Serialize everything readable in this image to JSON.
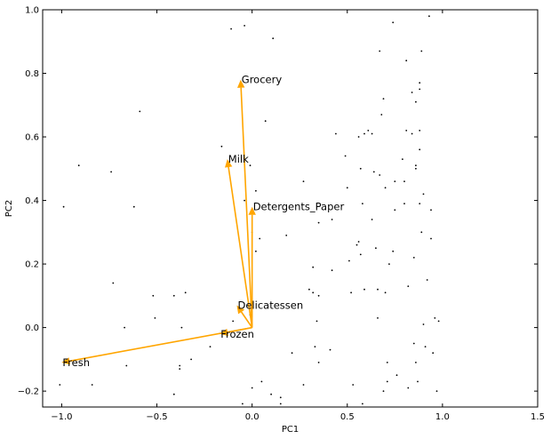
{
  "chart_data": {
    "type": "scatter",
    "title": "",
    "xlabel": "PC1",
    "ylabel": "PC2",
    "xlim": [
      -1.1,
      1.5
    ],
    "ylim": [
      -0.25,
      1.0
    ],
    "grid": false,
    "xticks": [
      -1.0,
      -0.5,
      0.0,
      0.5,
      1.0,
      1.5
    ],
    "xtick_labels": [
      "−1.0",
      "−0.5",
      "0.0",
      "0.5",
      "1.0",
      "1.5"
    ],
    "yticks": [
      -0.2,
      0.0,
      0.2,
      0.4,
      0.6,
      0.8,
      1.0
    ],
    "ytick_labels": [
      "−0.2",
      "0.0",
      "0.2",
      "0.4",
      "0.6",
      "0.8",
      "1.0"
    ],
    "arrow_color": "#FFA500",
    "point_color": "#000000",
    "arrows": [
      {
        "label": "Grocery",
        "x": -0.06,
        "y": 0.78
      },
      {
        "label": "Milk",
        "x": -0.13,
        "y": 0.53
      },
      {
        "label": "Detergents_Paper",
        "x": 0.0,
        "y": 0.38
      },
      {
        "label": "Delicatessen",
        "x": -0.08,
        "y": 0.07
      },
      {
        "label": "Frozen",
        "x": -0.17,
        "y": -0.02
      },
      {
        "label": "Fresh",
        "x": -1.0,
        "y": -0.11
      }
    ],
    "points": [
      [
        -0.04,
        0.95
      ],
      [
        -0.11,
        0.94
      ],
      [
        0.11,
        0.91
      ],
      [
        0.07,
        0.65
      ],
      [
        -0.59,
        0.68
      ],
      [
        -0.16,
        0.57
      ],
      [
        -0.13,
        0.51
      ],
      [
        -0.91,
        0.51
      ],
      [
        -0.74,
        0.49
      ],
      [
        -0.01,
        0.51
      ],
      [
        -0.99,
        0.38
      ],
      [
        -0.62,
        0.38
      ],
      [
        -0.04,
        0.4
      ],
      [
        0.02,
        0.43
      ],
      [
        0.0,
        0.3
      ],
      [
        0.04,
        0.28
      ],
      [
        0.18,
        0.29
      ],
      [
        0.02,
        0.24
      ],
      [
        -0.73,
        0.14
      ],
      [
        -0.52,
        0.1
      ],
      [
        -0.41,
        0.1
      ],
      [
        -0.35,
        0.11
      ],
      [
        -0.02,
        0.07
      ],
      [
        -0.01,
        0.04
      ],
      [
        -0.51,
        0.03
      ],
      [
        -0.67,
        0.0
      ],
      [
        -0.37,
        0.0
      ],
      [
        -0.1,
        0.02
      ],
      [
        -0.22,
        -0.06
      ],
      [
        -0.32,
        -0.1
      ],
      [
        -0.38,
        -0.13
      ],
      [
        -0.38,
        -0.12
      ],
      [
        -0.66,
        -0.12
      ],
      [
        -0.84,
        -0.18
      ],
      [
        -1.01,
        -0.18
      ],
      [
        -0.41,
        -0.21
      ],
      [
        -0.05,
        -0.24
      ],
      [
        0.0,
        -0.19
      ],
      [
        0.05,
        -0.17
      ],
      [
        0.1,
        -0.21
      ],
      [
        0.15,
        -0.22
      ],
      [
        0.15,
        -0.24
      ],
      [
        0.21,
        -0.08
      ],
      [
        0.27,
        -0.18
      ],
      [
        0.27,
        0.46
      ],
      [
        0.35,
        0.33
      ],
      [
        0.32,
        0.19
      ],
      [
        0.3,
        0.12
      ],
      [
        0.32,
        0.11
      ],
      [
        0.35,
        0.1
      ],
      [
        0.34,
        0.02
      ],
      [
        0.33,
        -0.06
      ],
      [
        0.35,
        -0.11
      ],
      [
        0.41,
        -0.07
      ],
      [
        0.42,
        0.18
      ],
      [
        0.42,
        0.34
      ],
      [
        0.44,
        0.61
      ],
      [
        0.49,
        0.54
      ],
      [
        0.5,
        0.44
      ],
      [
        0.51,
        0.21
      ],
      [
        0.52,
        0.11
      ],
      [
        0.53,
        -0.18
      ],
      [
        0.55,
        0.26
      ],
      [
        0.56,
        0.27
      ],
      [
        0.56,
        0.6
      ],
      [
        0.57,
        0.23
      ],
      [
        0.57,
        0.5
      ],
      [
        0.58,
        0.39
      ],
      [
        0.58,
        -0.24
      ],
      [
        0.59,
        0.12
      ],
      [
        0.59,
        0.61
      ],
      [
        0.61,
        0.62
      ],
      [
        0.63,
        0.34
      ],
      [
        0.63,
        0.61
      ],
      [
        0.64,
        0.49
      ],
      [
        0.65,
        0.25
      ],
      [
        0.66,
        0.12
      ],
      [
        0.66,
        0.03
      ],
      [
        0.67,
        0.87
      ],
      [
        0.67,
        0.48
      ],
      [
        0.68,
        0.67
      ],
      [
        0.69,
        0.72
      ],
      [
        0.69,
        -0.2
      ],
      [
        0.7,
        0.11
      ],
      [
        0.7,
        0.44
      ],
      [
        0.71,
        -0.11
      ],
      [
        0.71,
        -0.17
      ],
      [
        0.72,
        0.2
      ],
      [
        0.74,
        0.24
      ],
      [
        0.74,
        0.96
      ],
      [
        0.75,
        0.46
      ],
      [
        0.75,
        0.37
      ],
      [
        0.76,
        -0.15
      ],
      [
        0.79,
        0.53
      ],
      [
        0.8,
        0.46
      ],
      [
        0.8,
        0.39
      ],
      [
        0.81,
        0.84
      ],
      [
        0.81,
        0.62
      ],
      [
        0.82,
        0.13
      ],
      [
        0.82,
        -0.19
      ],
      [
        0.84,
        0.61
      ],
      [
        0.84,
        0.74
      ],
      [
        0.85,
        -0.05
      ],
      [
        0.85,
        0.22
      ],
      [
        0.86,
        0.71
      ],
      [
        0.86,
        0.5
      ],
      [
        0.86,
        0.51
      ],
      [
        0.86,
        -0.11
      ],
      [
        0.87,
        -0.17
      ],
      [
        0.88,
        0.75
      ],
      [
        0.88,
        0.62
      ],
      [
        0.88,
        0.77
      ],
      [
        0.88,
        0.56
      ],
      [
        0.88,
        0.39
      ],
      [
        0.89,
        0.3
      ],
      [
        0.89,
        0.87
      ],
      [
        0.9,
        0.42
      ],
      [
        0.9,
        0.01
      ],
      [
        0.91,
        -0.06
      ],
      [
        0.92,
        0.15
      ],
      [
        0.93,
        0.98
      ],
      [
        0.94,
        0.28
      ],
      [
        0.94,
        0.37
      ],
      [
        0.95,
        -0.08
      ],
      [
        0.96,
        0.03
      ],
      [
        0.97,
        -0.2
      ],
      [
        0.98,
        0.02
      ]
    ]
  }
}
